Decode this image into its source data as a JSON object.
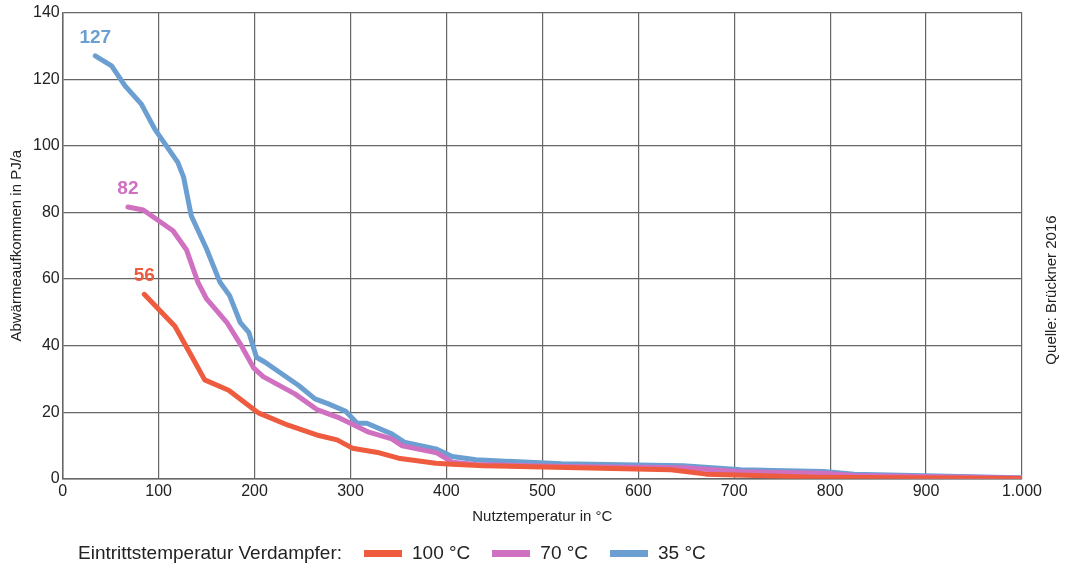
{
  "chart_data": {
    "type": "line",
    "xlabel": "Nutztemperatur in °C",
    "ylabel": "Abwärmeaufkommen in PJ/a",
    "legend_title": "Eintrittstemperatur Verdampfer:",
    "legend": "bottom",
    "grid": true,
    "marker": "none",
    "line_style": "solid",
    "xlim": [
      0,
      1000
    ],
    "xticks": [
      0,
      100,
      200,
      300,
      400,
      500,
      600,
      700,
      800,
      900,
      {
        "value": 1000,
        "label": "1.000"
      }
    ],
    "ylim": [
      0,
      140
    ],
    "yticks": [
      0,
      20,
      40,
      60,
      80,
      100,
      120,
      140
    ],
    "series": [
      {
        "name": "100 °C",
        "color": "#ee5b3f",
        "x": [
          85,
          117,
          134,
          148,
          173,
          204,
          235,
          267,
          286,
          302,
          330,
          350,
          389,
          406,
          439,
          634,
          671,
          785,
          1000
        ],
        "values": [
          55.4,
          45.8,
          37,
          29.7,
          26.6,
          19.8,
          16.1,
          13,
          11.7,
          9.2,
          7.8,
          6.2,
          4.7,
          4.4,
          3.9,
          2.7,
          1.4,
          0.5,
          0.1
        ]
      },
      {
        "name": "70 °C",
        "color": "#d070c0",
        "x": [
          68,
          84,
          115,
          129,
          141,
          150,
          171,
          187,
          199,
          209,
          242,
          265,
          289,
          301,
          319,
          343,
          354,
          390,
          406,
          431,
          520,
          647,
          707,
          793,
          825,
          1000
        ],
        "values": [
          81.6,
          80.7,
          74.5,
          68.8,
          59,
          54,
          47,
          39.6,
          33.3,
          30.7,
          25.5,
          20.8,
          18.2,
          16.5,
          14,
          12,
          9.9,
          7.8,
          5,
          4.3,
          3.7,
          3.3,
          2.1,
          1.7,
          1,
          0.2
        ]
      },
      {
        "name": "35 °C",
        "color": "#6b9fd1",
        "x": [
          34,
          51,
          65,
          82,
          96,
          120,
          126,
          134,
          150,
          164,
          174,
          185,
          194,
          202,
          211,
          246,
          263,
          277,
          295,
          307,
          317,
          343,
          356,
          389,
          406,
          431,
          520,
          647,
          707,
          793,
          825,
          1000
        ],
        "values": [
          127,
          124,
          118,
          112.5,
          105,
          95,
          90.6,
          79,
          69,
          59,
          55,
          47,
          44,
          36.5,
          35,
          28,
          24,
          22.5,
          20.3,
          16.7,
          16.7,
          13.5,
          11,
          9,
          6.7,
          5.7,
          4.5,
          3.9,
          2.7,
          2.2,
          1.4,
          0.3
        ]
      }
    ],
    "annotations": [
      {
        "text": "56",
        "x": 85,
        "y": 55.4
      },
      {
        "text": "82",
        "x": 68,
        "y": 81.6
      },
      {
        "text": "127",
        "x": 34,
        "y": 127
      },
      "Quelle: Brückner 2016"
    ]
  }
}
